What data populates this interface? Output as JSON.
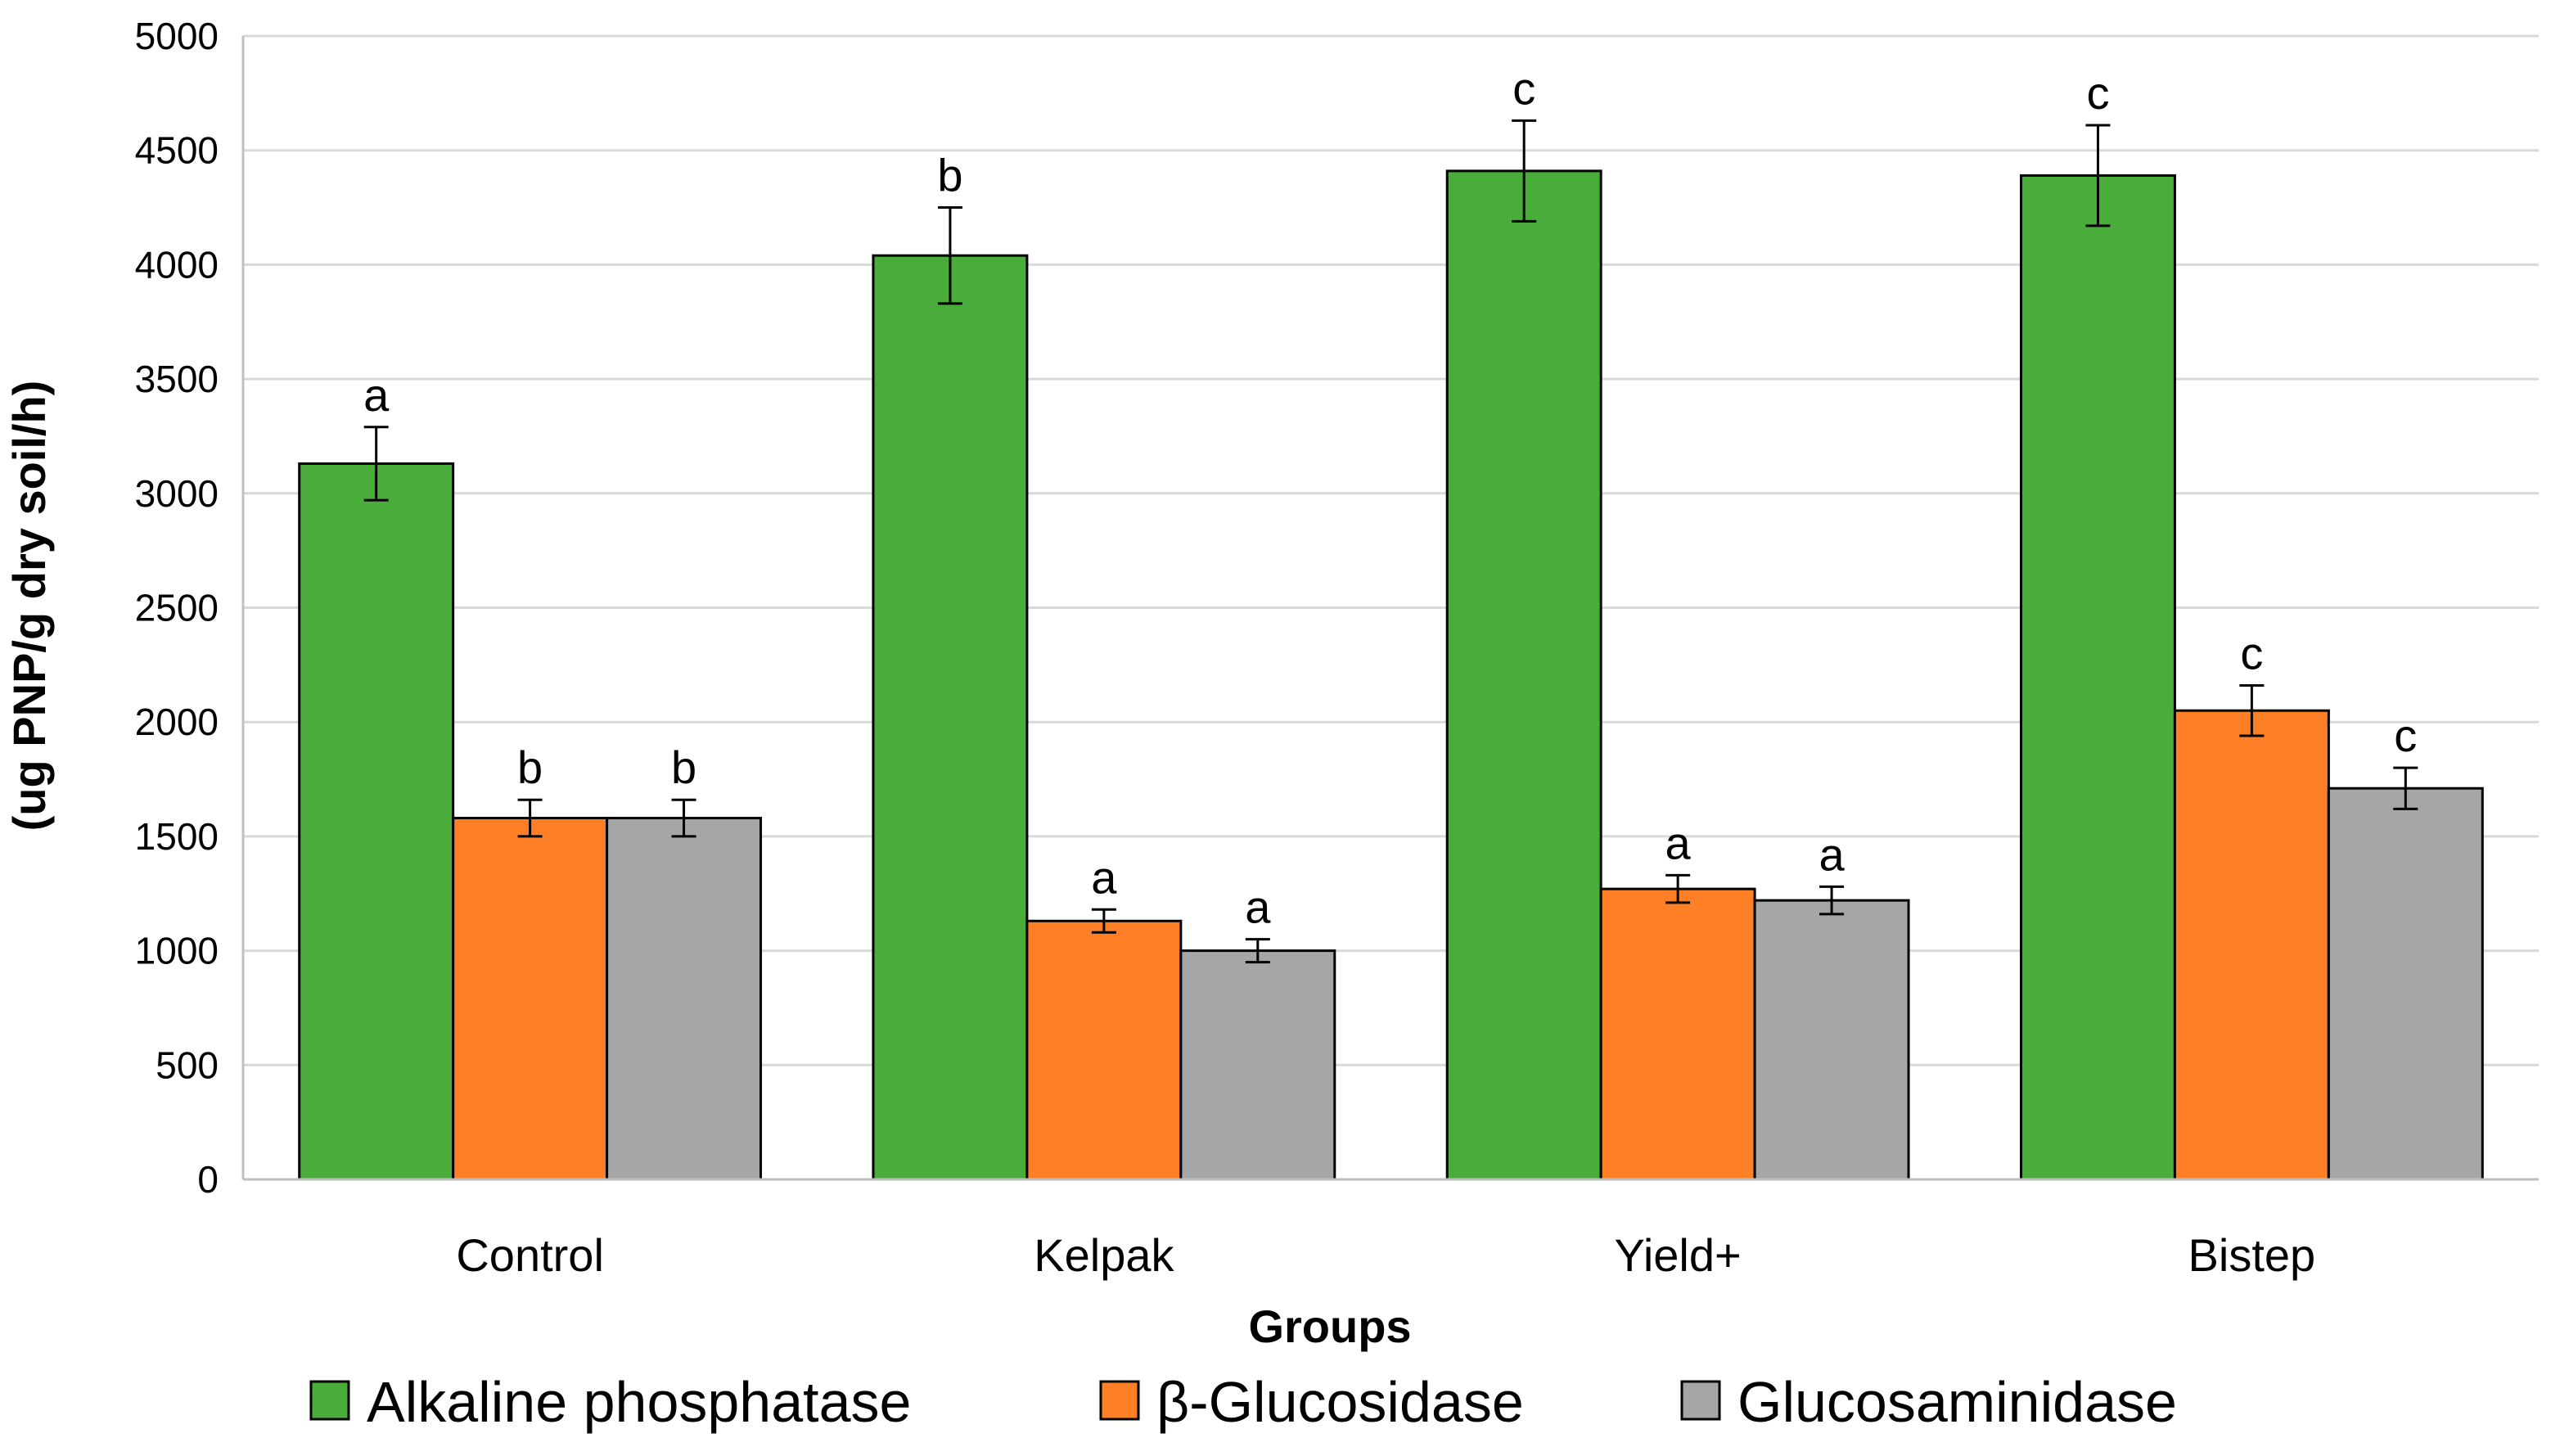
{
  "chart_data": {
    "type": "bar",
    "title": "",
    "xlabel": "Groups",
    "ylabel": "(ug PNP/g dry soil/h)",
    "ylim": [
      0,
      5000
    ],
    "yticks": [
      0,
      500,
      1000,
      1500,
      2000,
      2500,
      3000,
      3500,
      4000,
      4500,
      5000
    ],
    "grid": true,
    "legend_position": "bottom",
    "categories": [
      "Control",
      "Kelpak",
      "Yield+",
      "Bistep"
    ],
    "series": [
      {
        "name": "Alkaline phosphatase",
        "color": "#4aac3a",
        "values": [
          3130,
          4040,
          4410,
          4390
        ],
        "errors": [
          160,
          210,
          220,
          220
        ],
        "letters": [
          "a",
          "b",
          "c",
          "c"
        ]
      },
      {
        "name": "β-Glucosidase",
        "color": "#ff7f27",
        "values": [
          1580,
          1130,
          1270,
          2050
        ],
        "errors": [
          80,
          50,
          60,
          110
        ],
        "letters": [
          "b",
          "a",
          "a",
          "c"
        ]
      },
      {
        "name": "Glucosaminidase",
        "color": "#a6a6a6",
        "values": [
          1580,
          1000,
          1220,
          1710
        ],
        "errors": [
          80,
          50,
          60,
          90
        ],
        "letters": [
          "b",
          "a",
          "a",
          "c"
        ]
      }
    ]
  }
}
